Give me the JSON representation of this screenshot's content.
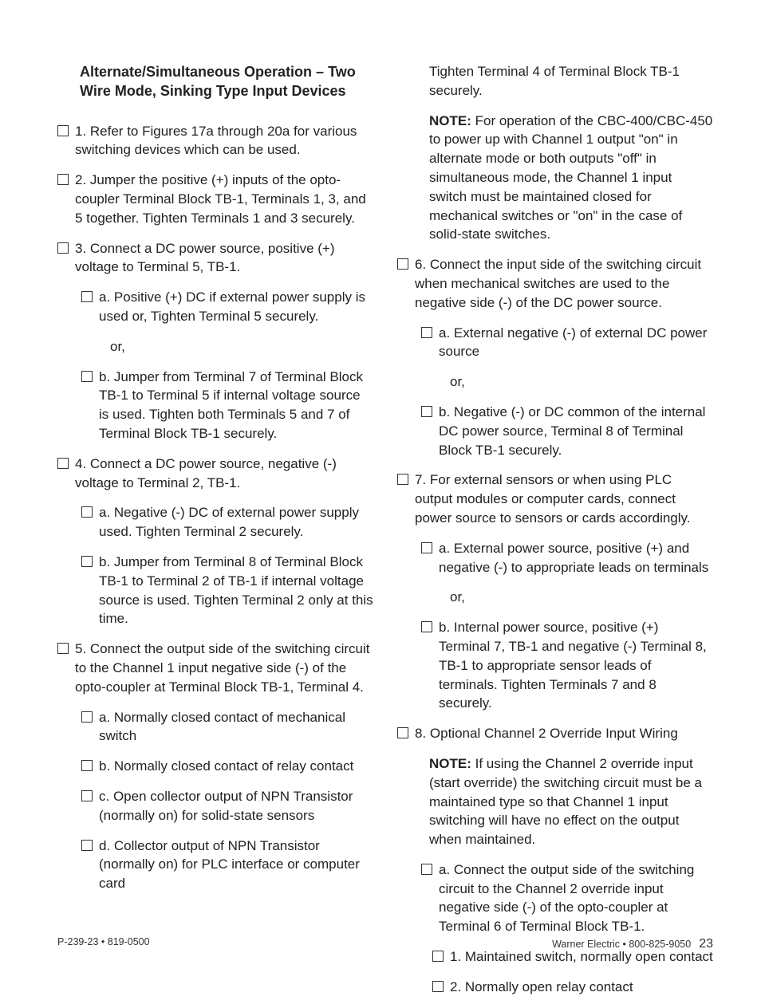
{
  "title": "Alternate/Simultaneous Operation – Two Wire Mode, Sinking Type Input Devices",
  "left": {
    "i1": "1. Refer to Figures 17a through 20a for various switching devices which can be used.",
    "i2": "2. Jumper the positive (+) inputs of the opto-coupler Terminal Block TB-1, Terminals 1, 3, and 5 together. Tighten Terminals 1 and 3 securely.",
    "i3": "3. Connect a DC power source, positive (+) voltage to Terminal 5, TB-1.",
    "i3a": "a. Positive (+) DC if external power supply is used or, Tighten Terminal 5 securely.",
    "or1": "or,",
    "i3b": "b. Jumper from Terminal 7 of Terminal Block TB-1 to Terminal 5 if internal voltage source is used. Tighten both Terminals 5 and 7 of Terminal Block TB-1 securely.",
    "i4": "4. Connect a DC power source, negative (-) voltage to Terminal 2, TB-1.",
    "i4a": "a. Negative (-) DC of external power supply used.  Tighten Terminal 2 securely.",
    "i4b": "b. Jumper from Terminal 8 of Terminal Block TB-1 to Terminal 2 of TB-1 if internal voltage source is used. Tighten Terminal 2 only at this time.",
    "i5": "5. Connect the output side of the switching circuit to the Channel 1 input negative side (-) of the opto-coupler at Terminal Block TB-1, Terminal 4.",
    "i5a": "a. Normally closed contact of mechanical switch",
    "i5b": "b. Normally closed contact of relay contact",
    "i5c": "c. Open collector output of NPN Transistor (normally on) for solid-state sensors",
    "i5d": "d. Collector output of NPN Transistor (normally on) for PLC interface or computer card"
  },
  "right": {
    "cont": "Tighten Terminal 4 of Terminal Block TB-1 securely.",
    "note1_label": "NOTE:",
    "note1": " For operation of the CBC-400/CBC-450 to power up with Channel 1 output \"on\" in alternate mode or both outputs \"off\" in simultaneous mode, the Channel 1 input switch must be maintained closed for mechanical switches or \"on\" in the case of solid-state switches.",
    "i6": "6. Connect the input side of the switching circuit when mechanical switches are used to the negative side (-) of the DC power source.",
    "i6a": "a. External negative (-) of external DC power source",
    "or2": "or,",
    "i6b": "b. Negative (-) or DC common of the internal DC power source, Terminal 8 of Terminal Block TB-1 securely.",
    "i7": "7. For external sensors or when using PLC output modules or computer cards, connect power source to sensors or cards accordingly.",
    "i7a": "a. External power source, positive (+) and negative (-) to appropriate leads on terminals",
    "or3": "or,",
    "i7b": "b. Internal power source, positive (+) Terminal 7, TB-1 and negative (-) Terminal 8, TB-1 to appropriate sensor leads of terminals. Tighten Terminals 7 and 8 securely.",
    "i8": "8. Optional Channel 2 Override Input Wiring",
    "note2_label": "NOTE:",
    "note2": " If using the Channel 2 override input (start override) the switching circuit must be a maintained type so that Channel 1 input switching will have no effect on the output when maintained.",
    "i8a": "a. Connect the output side of the switching circuit to the Channel 2 override input negative side (-) of the opto-coupler at Terminal 6 of Terminal Block TB-1.",
    "i8a1": "1. Maintained switch, normally open contact",
    "i8a2": "2. Normally open relay contact"
  },
  "footer": {
    "left": "P-239-23 • 819-0500",
    "right": "Warner Electric • 800-825-9050",
    "page": "23"
  }
}
